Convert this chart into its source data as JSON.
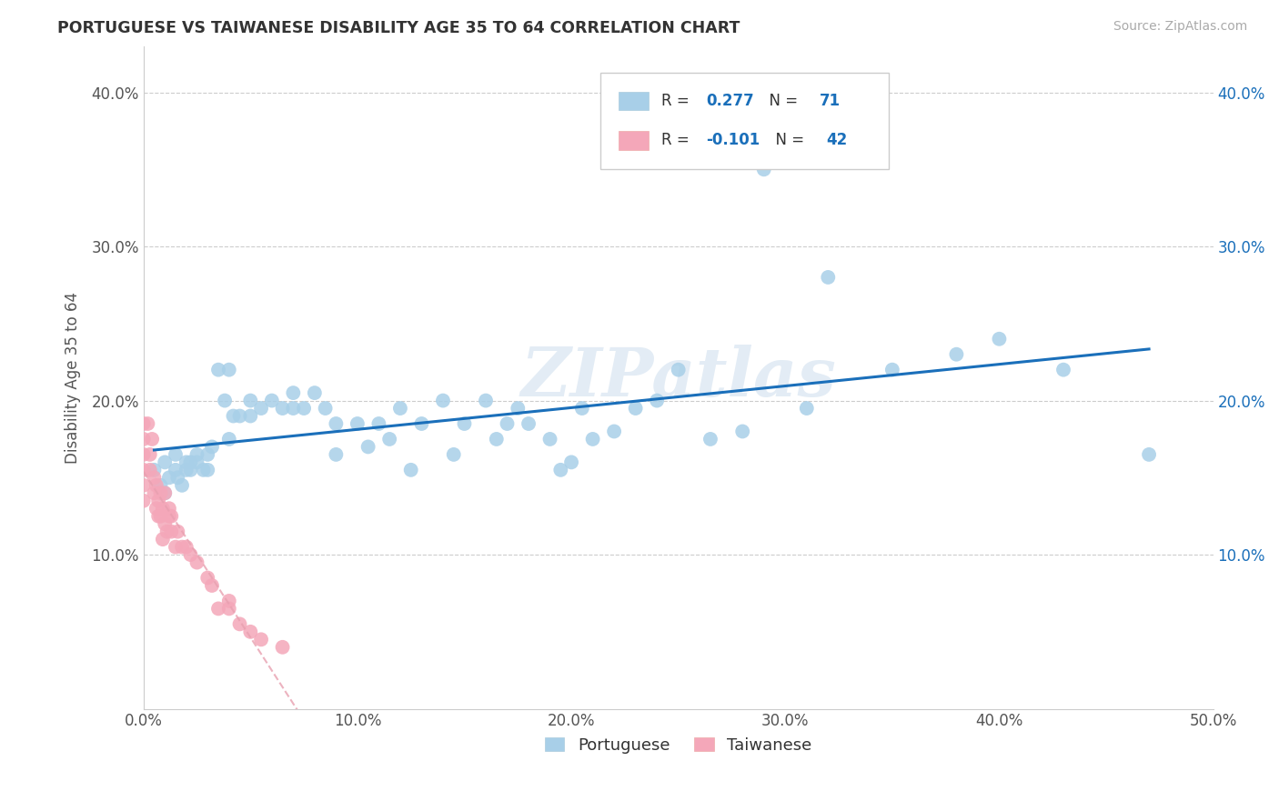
{
  "title": "PORTUGUESE VS TAIWANESE DISABILITY AGE 35 TO 64 CORRELATION CHART",
  "source": "Source: ZipAtlas.com",
  "ylabel_text": "Disability Age 35 to 64",
  "xlim": [
    0.0,
    0.5
  ],
  "ylim": [
    0.0,
    0.43
  ],
  "xtick_labels": [
    "0.0%",
    "10.0%",
    "20.0%",
    "30.0%",
    "40.0%",
    "50.0%"
  ],
  "xtick_vals": [
    0.0,
    0.1,
    0.2,
    0.3,
    0.4,
    0.5
  ],
  "ytick_labels": [
    "10.0%",
    "20.0%",
    "30.0%",
    "40.0%"
  ],
  "ytick_vals": [
    0.1,
    0.2,
    0.3,
    0.4
  ],
  "portuguese_R": 0.277,
  "portuguese_N": 71,
  "taiwanese_R": -0.101,
  "taiwanese_N": 42,
  "portuguese_color": "#a8cfe8",
  "taiwanese_color": "#f4a7b9",
  "portuguese_line_color": "#1a6fba",
  "taiwanese_line_color": "#e8a0b0",
  "legend_portuguese": "Portuguese",
  "legend_taiwanese": "Taiwanese",
  "portuguese_x": [
    0.005,
    0.008,
    0.01,
    0.01,
    0.012,
    0.015,
    0.015,
    0.016,
    0.018,
    0.02,
    0.02,
    0.022,
    0.022,
    0.025,
    0.025,
    0.028,
    0.03,
    0.03,
    0.032,
    0.035,
    0.038,
    0.04,
    0.04,
    0.042,
    0.045,
    0.05,
    0.05,
    0.055,
    0.06,
    0.065,
    0.07,
    0.07,
    0.075,
    0.08,
    0.085,
    0.09,
    0.09,
    0.1,
    0.105,
    0.11,
    0.115,
    0.12,
    0.125,
    0.13,
    0.14,
    0.145,
    0.15,
    0.16,
    0.165,
    0.17,
    0.175,
    0.18,
    0.19,
    0.195,
    0.2,
    0.205,
    0.21,
    0.22,
    0.23,
    0.24,
    0.25,
    0.265,
    0.28,
    0.29,
    0.31,
    0.32,
    0.35,
    0.38,
    0.4,
    0.43,
    0.47
  ],
  "portuguese_y": [
    0.155,
    0.145,
    0.16,
    0.14,
    0.15,
    0.155,
    0.165,
    0.15,
    0.145,
    0.155,
    0.16,
    0.16,
    0.155,
    0.165,
    0.16,
    0.155,
    0.165,
    0.155,
    0.17,
    0.22,
    0.2,
    0.175,
    0.22,
    0.19,
    0.19,
    0.19,
    0.2,
    0.195,
    0.2,
    0.195,
    0.205,
    0.195,
    0.195,
    0.205,
    0.195,
    0.185,
    0.165,
    0.185,
    0.17,
    0.185,
    0.175,
    0.195,
    0.155,
    0.185,
    0.2,
    0.165,
    0.185,
    0.2,
    0.175,
    0.185,
    0.195,
    0.185,
    0.175,
    0.155,
    0.16,
    0.195,
    0.175,
    0.18,
    0.195,
    0.2,
    0.22,
    0.175,
    0.18,
    0.35,
    0.195,
    0.28,
    0.22,
    0.23,
    0.24,
    0.22,
    0.165
  ],
  "taiwanese_x": [
    0.0,
    0.0,
    0.0,
    0.0,
    0.0,
    0.0,
    0.002,
    0.003,
    0.003,
    0.004,
    0.005,
    0.005,
    0.006,
    0.006,
    0.007,
    0.007,
    0.008,
    0.008,
    0.009,
    0.009,
    0.01,
    0.01,
    0.011,
    0.012,
    0.012,
    0.013,
    0.013,
    0.015,
    0.016,
    0.018,
    0.02,
    0.022,
    0.025,
    0.03,
    0.032,
    0.035,
    0.04,
    0.04,
    0.045,
    0.05,
    0.055,
    0.065
  ],
  "taiwanese_y": [
    0.185,
    0.175,
    0.165,
    0.155,
    0.145,
    0.135,
    0.185,
    0.165,
    0.155,
    0.175,
    0.14,
    0.15,
    0.13,
    0.145,
    0.125,
    0.135,
    0.14,
    0.125,
    0.11,
    0.13,
    0.14,
    0.12,
    0.115,
    0.13,
    0.125,
    0.115,
    0.125,
    0.105,
    0.115,
    0.105,
    0.105,
    0.1,
    0.095,
    0.085,
    0.08,
    0.065,
    0.07,
    0.065,
    0.055,
    0.05,
    0.045,
    0.04
  ]
}
